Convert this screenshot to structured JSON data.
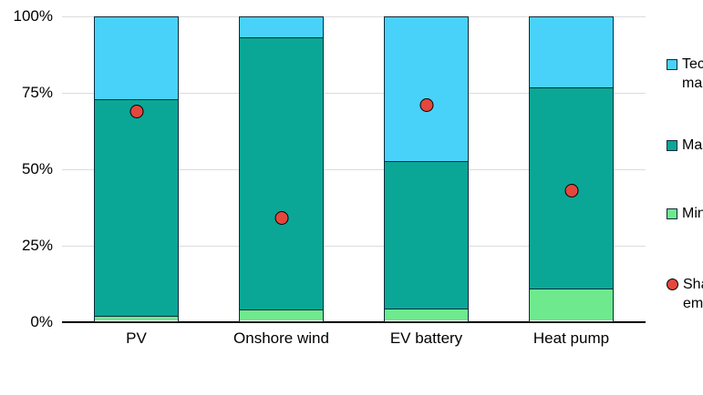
{
  "chart_data": {
    "type": "bar",
    "variant": "stacked-100-percent-with-dot-overlay",
    "title": "",
    "categories": [
      "PV",
      "Onshore wind",
      "EV battery",
      "Heat pump"
    ],
    "series": [
      {
        "name": "Min",
        "marker": "square",
        "color": "#6FE98D",
        "values": [
          1.5,
          3.5,
          4,
          10.5
        ]
      },
      {
        "name": "Ma",
        "marker": "square",
        "color": "#0AA796",
        "values": [
          71.5,
          90,
          48.5,
          66.5
        ]
      },
      {
        "name": "Tec ma",
        "marker": "square",
        "color": "#48D2F9",
        "values": [
          27,
          6.5,
          47.5,
          23
        ]
      }
    ],
    "dot_series": {
      "name": "Sha em",
      "marker": "circle",
      "color": "#E4473D",
      "values": [
        69,
        34,
        71,
        43
      ]
    },
    "y_axis": {
      "min": 0,
      "max": 100,
      "ticks": [
        {
          "label": "100%",
          "value": 100
        },
        {
          "label": "75%",
          "value": 75
        },
        {
          "label": "50%",
          "value": 50
        },
        {
          "label": "25%",
          "value": 25
        },
        {
          "label": "0%",
          "value": 0
        }
      ]
    },
    "grid": true,
    "legend_position": "right",
    "legend_clipped_at_right_edge": true
  },
  "legend": {
    "items": [
      {
        "marker": "square",
        "color": "#48D2F9",
        "lines": [
          "Tec",
          "ma"
        ]
      },
      {
        "marker": "square",
        "color": "#0AA796",
        "lines": [
          "Ma"
        ]
      },
      {
        "marker": "square",
        "color": "#6FE98D",
        "lines": [
          "Min"
        ]
      },
      {
        "marker": "circle",
        "color": "#E4473D",
        "lines": [
          "Sha",
          "em"
        ]
      }
    ]
  },
  "colors": {
    "background": "#FFFFFF",
    "grid_line": "#DCDCDC",
    "axis_line": "#000000",
    "bar_border": "#0E2A3C",
    "text": "#000000"
  }
}
